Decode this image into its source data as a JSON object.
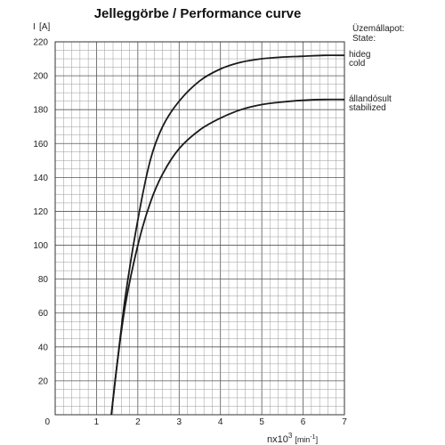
{
  "chart_data": {
    "type": "line",
    "title": "Jelleggörbe / Performance curve",
    "ylabel_symbol": "I",
    "ylabel_unit": "[A]",
    "xlabel_base": "nx10",
    "xlabel_exp": "3",
    "xlabel_unit": "[min",
    "xlabel_unit_exp": "-1",
    "xlabel_unit_close": "]",
    "xlim": [
      0,
      7
    ],
    "ylim": [
      0,
      220
    ],
    "x_ticks": [
      "0",
      "1",
      "2",
      "3",
      "4",
      "5",
      "6",
      "7"
    ],
    "y_ticks": [
      "20",
      "40",
      "60",
      "80",
      "100",
      "120",
      "140",
      "160",
      "180",
      "200",
      "220"
    ],
    "grid": true,
    "state_note": [
      "Üzemállapot:",
      "State:"
    ],
    "series": [
      {
        "labels": [
          "hideg",
          "cold"
        ],
        "x": [
          1.36,
          1.5,
          1.7,
          2.0,
          2.3,
          2.6,
          3.0,
          3.5,
          4.0,
          4.5,
          5.0,
          5.5,
          6.0,
          6.5,
          7.0
        ],
        "y": [
          0,
          30,
          70,
          115,
          150,
          170,
          185,
          197,
          204,
          208,
          210,
          211,
          211.5,
          212,
          212
        ]
      },
      {
        "labels": [
          "állandósult",
          "stabilized"
        ],
        "x": [
          1.36,
          1.5,
          1.7,
          2.0,
          2.3,
          2.6,
          3.0,
          3.5,
          4.0,
          4.5,
          5.0,
          5.5,
          6.0,
          6.5,
          7.0
        ],
        "y": [
          0,
          30,
          65,
          100,
          125,
          142,
          157,
          168,
          175,
          180,
          183,
          184.5,
          185.5,
          186,
          186
        ]
      }
    ]
  }
}
